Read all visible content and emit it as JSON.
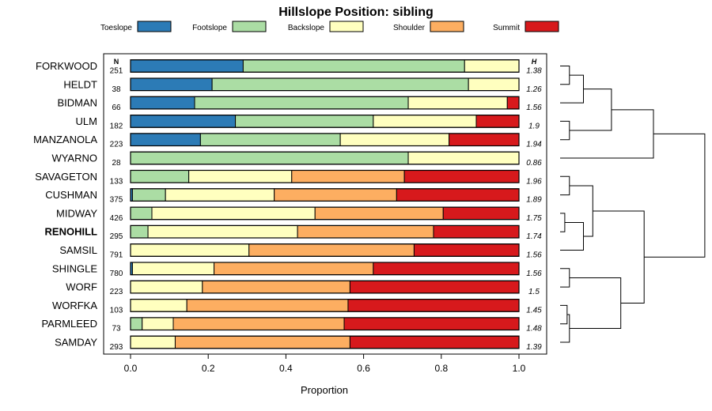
{
  "chart_data": {
    "type": "bar",
    "subtype": "stacked-horizontal-proportion",
    "title": "Hillslope Position: sibling",
    "xlabel": "Proportion",
    "xlim": [
      0,
      1
    ],
    "xticks": [
      "0.0",
      "0.2",
      "0.4",
      "0.6",
      "0.8",
      "1.0"
    ],
    "n_header": "N",
    "h_header": "H",
    "legend_placement": "top",
    "series": [
      {
        "name": "Toeslope",
        "color": "#2c7bb6"
      },
      {
        "name": "Footslope",
        "color": "#abdda4"
      },
      {
        "name": "Backslope",
        "color": "#ffffbf"
      },
      {
        "name": "Shoulder",
        "color": "#fdae61"
      },
      {
        "name": "Summit",
        "color": "#d7191c"
      }
    ],
    "highlight": "RENOHILL",
    "rows": [
      {
        "name": "FORKWOOD",
        "n": "251",
        "h": "1.38",
        "values": [
          0.29,
          0.57,
          0.14,
          0,
          0
        ]
      },
      {
        "name": "HELDT",
        "n": "38",
        "h": "1.26",
        "values": [
          0.21,
          0.66,
          0.13,
          0,
          0
        ]
      },
      {
        "name": "BIDMAN",
        "n": "66",
        "h": "1.56",
        "values": [
          0.165,
          0.55,
          0.255,
          0,
          0.03
        ]
      },
      {
        "name": "ULM",
        "n": "182",
        "h": "1.9",
        "values": [
          0.27,
          0.355,
          0.265,
          0,
          0.11
        ]
      },
      {
        "name": "MANZANOLA",
        "n": "223",
        "h": "1.94",
        "values": [
          0.18,
          0.36,
          0.28,
          0,
          0.18
        ]
      },
      {
        "name": "WYARNO",
        "n": "28",
        "h": "0.86",
        "values": [
          0,
          0.715,
          0.285,
          0,
          0
        ]
      },
      {
        "name": "SAVAGETON",
        "n": "133",
        "h": "1.96",
        "values": [
          0,
          0.15,
          0.265,
          0.29,
          0.295
        ]
      },
      {
        "name": "CUSHMAN",
        "n": "375",
        "h": "1.89",
        "values": [
          0.005,
          0.085,
          0.28,
          0.315,
          0.315
        ]
      },
      {
        "name": "MIDWAY",
        "n": "426",
        "h": "1.75",
        "values": [
          0,
          0.055,
          0.42,
          0.33,
          0.195
        ]
      },
      {
        "name": "RENOHILL",
        "n": "295",
        "h": "1.74",
        "values": [
          0,
          0.045,
          0.385,
          0.35,
          0.22
        ]
      },
      {
        "name": "SAMSIL",
        "n": "791",
        "h": "1.56",
        "values": [
          0,
          0,
          0.305,
          0.425,
          0.27
        ]
      },
      {
        "name": "SHINGLE",
        "n": "780",
        "h": "1.56",
        "values": [
          0.005,
          0,
          0.21,
          0.41,
          0.375
        ]
      },
      {
        "name": "WORF",
        "n": "223",
        "h": "1.5",
        "values": [
          0,
          0,
          0.185,
          0.38,
          0.435
        ]
      },
      {
        "name": "WORFKA",
        "n": "103",
        "h": "1.45",
        "values": [
          0,
          0,
          0.145,
          0.415,
          0.44
        ]
      },
      {
        "name": "PARMLEED",
        "n": "73",
        "h": "1.48",
        "values": [
          0,
          0.03,
          0.08,
          0.44,
          0.45
        ]
      },
      {
        "name": "SAMDAY",
        "n": "293",
        "h": "1.39",
        "values": [
          0,
          0,
          0.115,
          0.45,
          0.435
        ]
      }
    ],
    "dendrogram": {
      "orientation": "leaves-left",
      "merges": [
        {
          "left": "FORKWOOD",
          "right": "HELDT",
          "height": 0.02
        },
        {
          "left": "m0",
          "right": "BIDMAN",
          "height": 0.05
        },
        {
          "left": "ULM",
          "right": "MANZANOLA",
          "height": 0.02
        },
        {
          "left": "m1",
          "right": "m2",
          "height": 0.11
        },
        {
          "left": "m3",
          "right": "WYARNO",
          "height": 0.2
        },
        {
          "left": "SAVAGETON",
          "right": "CUSHMAN",
          "height": 0.02
        },
        {
          "left": "MIDWAY",
          "right": "RENOHILL",
          "height": 0.01
        },
        {
          "left": "m6",
          "right": "SAMSIL",
          "height": 0.05
        },
        {
          "left": "m5",
          "right": "m7",
          "height": 0.07
        },
        {
          "left": "SHINGLE",
          "right": "WORF",
          "height": 0.02
        },
        {
          "left": "WORFKA",
          "right": "PARMLEED",
          "height": 0.015
        },
        {
          "left": "m10",
          "right": "SAMDAY",
          "height": 0.02
        },
        {
          "left": "m9",
          "right": "m11",
          "height": 0.13
        },
        {
          "left": "m8",
          "right": "m12",
          "height": 0.18
        },
        {
          "left": "m4",
          "right": "m13",
          "height": 0.31
        }
      ]
    }
  }
}
